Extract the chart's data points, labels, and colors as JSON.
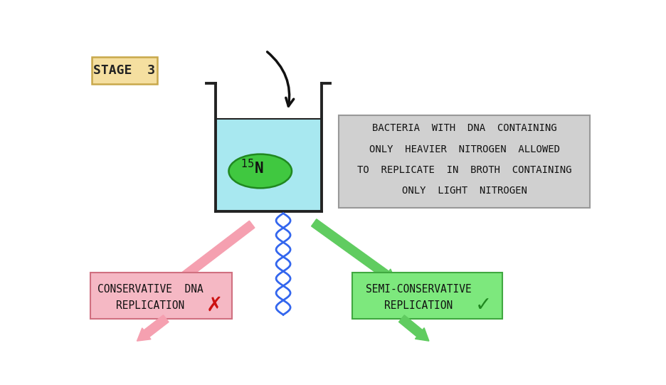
{
  "bg_color": "#ffffff",
  "stage_label": "STAGE  3",
  "stage_box_color": "#f5dfa0",
  "stage_box_edge": "#c8a84b",
  "bacteria_text_lines": [
    "BACTERIA  WITH  DNA  CONTAINING",
    "ONLY  HEAVIER  NITROGEN  ALLOWED",
    "TO  REPLICATE  IN  BROTH  CONTAINING",
    "ONLY  LIGHT  NITROGEN"
  ],
  "bacteria_box_color": "#d0d0d0",
  "bacteria_box_edge": "#999999",
  "conservative_label_line1": "CONSERVATIVE  DNA",
  "conservative_label_line2": "REPLICATION",
  "conservative_box_color": "#f5b8c4",
  "conservative_box_edge": "#d07080",
  "semi_label_line1": "SEMI-CONSERVATIVE",
  "semi_label_line2": "REPLICATION",
  "semi_box_color": "#7de87d",
  "semi_box_edge": "#40a840",
  "beaker_liquid_color": "#a8e8f0",
  "beaker_edge_color": "#222222",
  "bacteria_fill": "#40c840",
  "bacteria_edge": "#208820",
  "arrow_color": "#111111",
  "pink_arrow_color": "#f5a0b0",
  "pink_arrow_edge": "#cc7080",
  "green_arrow_color": "#60cc60",
  "green_arrow_edge": "#208820",
  "blue_wave_color": "#3366ee",
  "x_mark_color": "#cc1111",
  "check_color": "#208820"
}
